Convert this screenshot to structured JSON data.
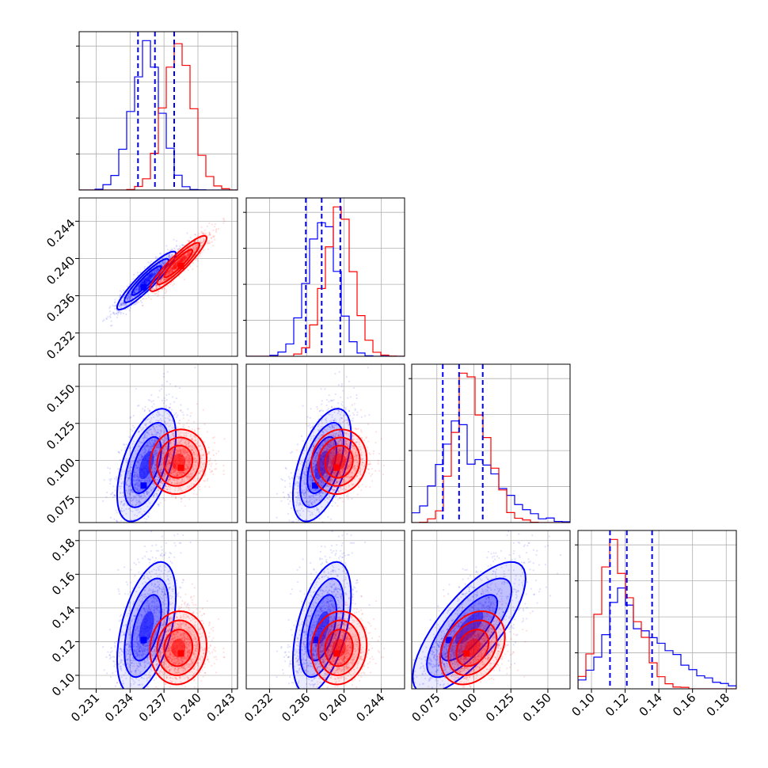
{
  "chart_data": {
    "type": "corner",
    "parameters": 4,
    "colors": {
      "blue": "#0000ff",
      "red": "#ff0000",
      "grid": "#b0b0b0"
    },
    "series": [
      {
        "color": "blue",
        "means": [
          0.2355,
          0.2377,
          0.093,
          0.124
        ],
        "sigmas": [
          0.0013,
          0.00155,
          0.0135,
          0.0135
        ],
        "correlation": [
          [
            1,
            0.92,
            0.55,
            0.5
          ],
          [
            0.92,
            1,
            0.55,
            0.5
          ],
          [
            0.55,
            0.55,
            1,
            0.75
          ],
          [
            0.5,
            0.5,
            0.75,
            1
          ]
        ],
        "quantiles": [
          [
            0.2347,
            0.2362,
            0.2379
          ],
          [
            0.2359,
            0.2376,
            0.2396
          ],
          [
            0.079,
            0.09,
            0.106
          ],
          [
            0.111,
            0.121,
            0.136
          ]
        ],
        "peak": [
          0.2352,
          0.2369,
          0.083,
          0.121
        ]
      },
      {
        "color": "red",
        "means": [
          0.2383,
          0.2395,
          0.098,
          0.115
        ],
        "sigmas": [
          0.00125,
          0.0015,
          0.009,
          0.009
        ],
        "correlation": [
          [
            1,
            0.92,
            0.1,
            0.1
          ],
          [
            0.92,
            1,
            0.1,
            0.1
          ],
          [
            0.1,
            0.1,
            1,
            0.3
          ],
          [
            0.1,
            0.1,
            0.3,
            1
          ]
        ],
        "peak": [
          0.2385,
          0.2392,
          0.095,
          0.113
        ]
      }
    ],
    "axes": [
      {
        "range": [
          0.2295,
          0.2435
        ],
        "ticks": [
          "0.231",
          "0.234",
          "0.237",
          "0.240",
          "0.243"
        ]
      },
      {
        "range": [
          0.2295,
          0.2465
        ],
        "ticks": [
          "0.232",
          "0.236",
          "0.240",
          "0.244"
        ]
      },
      {
        "range": [
          0.058,
          0.165
        ],
        "ticks": [
          "0.075",
          "0.100",
          "0.125",
          "0.150"
        ]
      },
      {
        "range": [
          0.092,
          0.186
        ],
        "ticks": [
          "0.10",
          "0.12",
          "0.14",
          "0.16",
          "0.18"
        ]
      }
    ],
    "histogram_bins": 20,
    "grid": true,
    "legend": "none"
  }
}
